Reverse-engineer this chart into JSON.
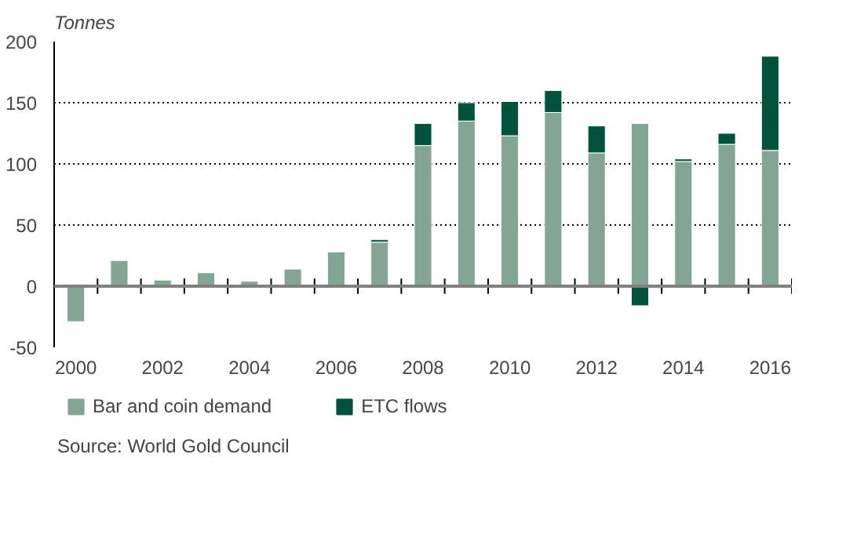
{
  "chart_data": {
    "type": "bar",
    "stacked": true,
    "ylabel": "Tonnes",
    "x": [
      2000,
      2001,
      2002,
      2003,
      2004,
      2005,
      2006,
      2007,
      2008,
      2009,
      2010,
      2011,
      2012,
      2013,
      2014,
      2015,
      2016
    ],
    "series": [
      {
        "name": "Bar and coin demand",
        "color": "#84a596",
        "values": [
          -29,
          21,
          5,
          11,
          4,
          14,
          28,
          36,
          115,
          135,
          123,
          142,
          109,
          133,
          102,
          116,
          111
        ]
      },
      {
        "name": "ETC flows",
        "color": "#00533a",
        "values": [
          null,
          null,
          null,
          null,
          null,
          null,
          null,
          2,
          18,
          15,
          28,
          18,
          22,
          -16,
          2,
          9,
          77
        ]
      }
    ],
    "xlim": [
      1999.5,
      2016.5
    ],
    "xticks": [
      2000,
      2002,
      2004,
      2006,
      2008,
      2010,
      2012,
      2014,
      2016,
      {
        "value": 2000.5,
        "label": null
      },
      {
        "value": 2001.5,
        "label": null
      },
      {
        "value": 2002.5,
        "label": null
      },
      {
        "value": 2003.5,
        "label": null
      },
      {
        "value": 2004.5,
        "label": null
      },
      {
        "value": 2005.5,
        "label": null
      },
      {
        "value": 2006.5,
        "label": null
      },
      {
        "value": 2007.5,
        "label": null
      },
      {
        "value": 2008.5,
        "label": null
      },
      {
        "value": 2009.5,
        "label": null
      },
      {
        "value": 2010.5,
        "label": null
      },
      {
        "value": 2011.5,
        "label": null
      },
      {
        "value": 2012.5,
        "label": null
      },
      {
        "value": 2013.5,
        "label": null
      },
      {
        "value": 2014.5,
        "label": null
      },
      {
        "value": 2015.5,
        "label": null
      },
      {
        "value": 2016.5,
        "label": null
      }
    ],
    "ylim": [
      -50,
      200
    ],
    "yticks": [
      -50,
      0,
      50,
      100,
      150,
      200
    ],
    "grid": "y",
    "legend": "bottom left",
    "ref_lines": [
      {
        "axis": "y",
        "value": 0,
        "color": "#808080"
      }
    ],
    "annotations": [
      "Source: World Gold Council"
    ]
  }
}
